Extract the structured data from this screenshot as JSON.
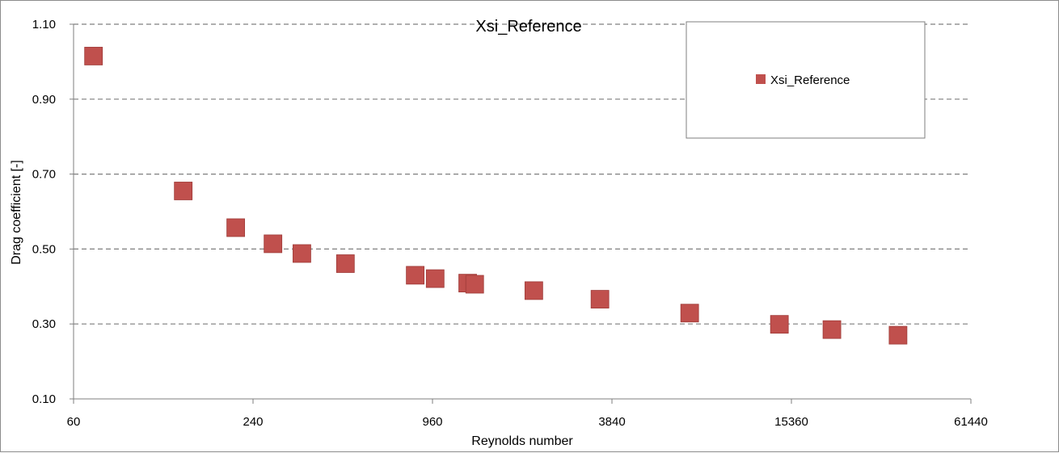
{
  "chart_data": {
    "type": "scatter",
    "title": "Xsi_Reference",
    "xlabel": "Reynolds number",
    "ylabel": "Drag coefficient [-]",
    "x_scale": "log2",
    "xlim": [
      60,
      61440
    ],
    "ylim": [
      0.1,
      1.1
    ],
    "x_ticks": [
      "60",
      "240",
      "960",
      "3840",
      "15360",
      "61440"
    ],
    "y_ticks": [
      "0.10",
      "0.30",
      "0.50",
      "0.70",
      "0.90",
      "1.10"
    ],
    "grid": "horizontal dashed",
    "legend_position": "top-right",
    "series": [
      {
        "name": "Xsi_Reference",
        "color": "#c0504d",
        "marker": "square",
        "points": [
          {
            "x": 70,
            "y": 1.015
          },
          {
            "x": 140,
            "y": 0.655
          },
          {
            "x": 210,
            "y": 0.557
          },
          {
            "x": 280,
            "y": 0.514
          },
          {
            "x": 350,
            "y": 0.488
          },
          {
            "x": 490,
            "y": 0.461
          },
          {
            "x": 840,
            "y": 0.43
          },
          {
            "x": 980,
            "y": 0.421
          },
          {
            "x": 1260,
            "y": 0.409
          },
          {
            "x": 1330,
            "y": 0.406
          },
          {
            "x": 2100,
            "y": 0.389
          },
          {
            "x": 3500,
            "y": 0.366
          },
          {
            "x": 7000,
            "y": 0.329
          },
          {
            "x": 14000,
            "y": 0.299
          },
          {
            "x": 21000,
            "y": 0.285
          },
          {
            "x": 35000,
            "y": 0.27
          }
        ]
      }
    ]
  }
}
